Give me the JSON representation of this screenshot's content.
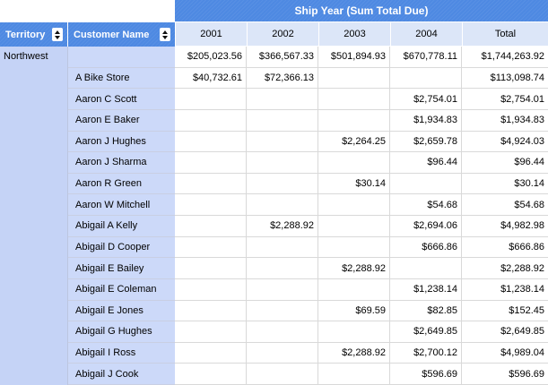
{
  "table": {
    "banner": "Ship Year (Sum Total Due)",
    "row_group_headers": {
      "territory_label": "Territory",
      "customer_label": "Customer Name"
    },
    "col_headers": [
      "2001",
      "2002",
      "2003",
      "2004",
      "Total"
    ],
    "territory": "Northwest",
    "rows": [
      {
        "customer": "",
        "values": [
          "$205,023.56",
          "$366,567.33",
          "$501,894.93",
          "$670,778.11",
          "$1,744,263.92"
        ]
      },
      {
        "customer": "A Bike Store",
        "values": [
          "$40,732.61",
          "$72,366.13",
          "",
          "",
          "$113,098.74"
        ]
      },
      {
        "customer": "Aaron C Scott",
        "values": [
          "",
          "",
          "",
          "$2,754.01",
          "$2,754.01"
        ]
      },
      {
        "customer": "Aaron E Baker",
        "values": [
          "",
          "",
          "",
          "$1,934.83",
          "$1,934.83"
        ]
      },
      {
        "customer": "Aaron J Hughes",
        "values": [
          "",
          "",
          "$2,264.25",
          "$2,659.78",
          "$4,924.03"
        ]
      },
      {
        "customer": "Aaron J Sharma",
        "values": [
          "",
          "",
          "",
          "$96.44",
          "$96.44"
        ]
      },
      {
        "customer": "Aaron R Green",
        "values": [
          "",
          "",
          "$30.14",
          "",
          "$30.14"
        ]
      },
      {
        "customer": "Aaron W Mitchell",
        "values": [
          "",
          "",
          "",
          "$54.68",
          "$54.68"
        ]
      },
      {
        "customer": "Abigail A Kelly",
        "values": [
          "",
          "$2,288.92",
          "",
          "$2,694.06",
          "$4,982.98"
        ]
      },
      {
        "customer": "Abigail D Cooper",
        "values": [
          "",
          "",
          "",
          "$666.86",
          "$666.86"
        ]
      },
      {
        "customer": "Abigail E Bailey",
        "values": [
          "",
          "",
          "$2,288.92",
          "",
          "$2,288.92"
        ]
      },
      {
        "customer": "Abigail E Coleman",
        "values": [
          "",
          "",
          "",
          "$1,238.14",
          "$1,238.14"
        ]
      },
      {
        "customer": "Abigail E Jones",
        "values": [
          "",
          "",
          "$69.59",
          "$82.85",
          "$152.45"
        ]
      },
      {
        "customer": "Abigail G Hughes",
        "values": [
          "",
          "",
          "",
          "$2,649.85",
          "$2,649.85"
        ]
      },
      {
        "customer": "Abigail I Ross",
        "values": [
          "",
          "",
          "$2,288.92",
          "$2,700.12",
          "$4,989.04"
        ]
      },
      {
        "customer": "Abigail J Cook",
        "values": [
          "",
          "",
          "",
          "$596.69",
          "$596.69"
        ]
      }
    ]
  },
  "icons": {
    "territory_sort": "sort-toggle-icon",
    "customer_sort": "sort-toggle-icon"
  },
  "colors": {
    "header_blue": "#4e89e2",
    "header_light_blue": "#dce6f8",
    "territory_column": "#c5d3f6",
    "customer_column": "#ccd9f9",
    "gridline": "#d9d9d9",
    "header_text": "#ffffff"
  }
}
